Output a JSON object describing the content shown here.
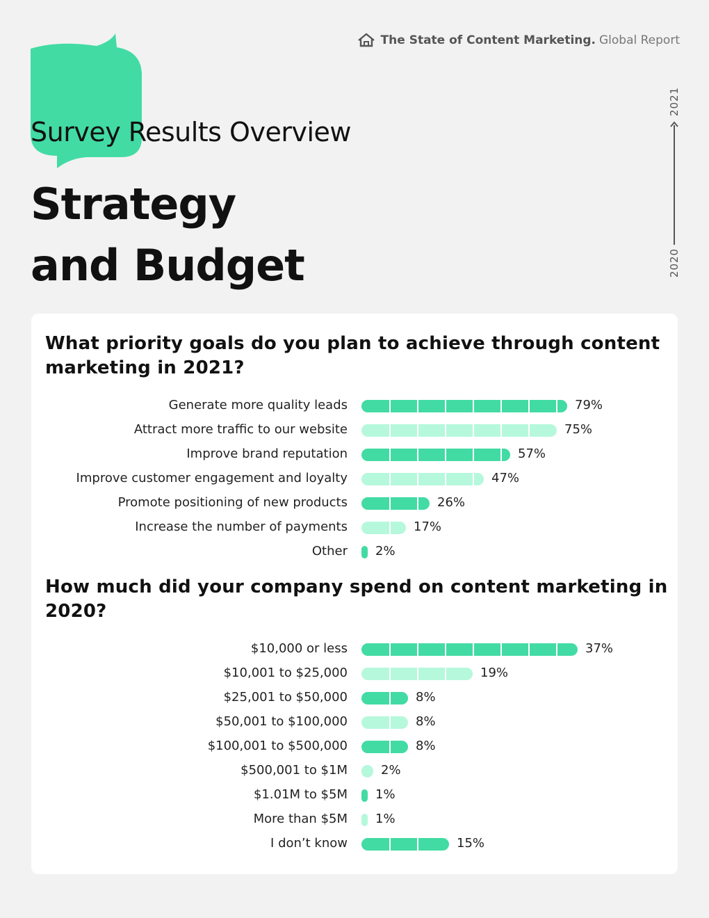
{
  "header": {
    "report_title_bold": "The State of Content Marketing.",
    "report_title_light": "Global Report",
    "home_icon": "home-icon"
  },
  "page": {
    "subtitle": "Survey Results Overview",
    "title_line1": "Strategy",
    "title_line2": "and Budget"
  },
  "timeline": {
    "end_year": "2021",
    "start_year": "2020"
  },
  "colors": {
    "accent": "#42dba4",
    "accent_light": "#b6f8dc",
    "background": "#f2f2f2",
    "card": "#ffffff"
  },
  "chart_data": [
    {
      "type": "bar",
      "orientation": "horizontal",
      "title": "What priority goals do you plan to achieve through content marketing in 2021?",
      "categories": [
        "Generate more quality leads",
        "Attract more traffic to our website",
        "Improve brand reputation",
        "Improve customer engagement and loyalty",
        "Promote positioning of new products",
        "Increase the number of payments",
        "Other"
      ],
      "values": [
        79,
        75,
        57,
        47,
        26,
        17,
        2
      ],
      "value_labels": [
        "79%",
        "75%",
        "57%",
        "47%",
        "26%",
        "17%",
        "2%"
      ],
      "unit": "%",
      "xlim": [
        0,
        100
      ]
    },
    {
      "type": "bar",
      "orientation": "horizontal",
      "title": "How much did your company spend on content marketing in 2020?",
      "categories": [
        "$10,000 or less",
        "$10,001 to $25,000",
        "$25,001 to $50,000",
        "$50,001 to $100,000",
        "$100,001 to $500,000",
        "$500,001 to $1M",
        "$1.01M to $5M",
        "More than $5M",
        "I don’t know"
      ],
      "values": [
        37,
        19,
        8,
        8,
        8,
        2,
        1,
        1,
        15
      ],
      "value_labels": [
        "37%",
        "19%",
        "8%",
        "8%",
        "8%",
        "2%",
        "1%",
        "1%",
        "15%"
      ],
      "unit": "%",
      "xlim": [
        0,
        40
      ]
    }
  ]
}
